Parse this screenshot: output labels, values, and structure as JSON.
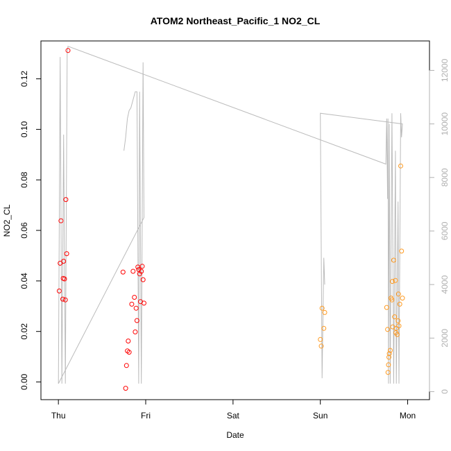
{
  "chart_data": {
    "type": "scatter",
    "title": "ATOM2 Northeast_Pacific_1 NO2_CL",
    "xlabel": "Date",
    "ylabel": "NO2_CL",
    "x_units": "days (Thu = 0)",
    "xlim": [
      -0.2,
      4.25
    ],
    "ylim": [
      -0.007,
      0.135
    ],
    "y2lim": [
      -300,
      13100
    ],
    "x_ticks": [
      {
        "value": 0,
        "label": "Thu"
      },
      {
        "value": 1,
        "label": "Fri"
      },
      {
        "value": 2,
        "label": "Sat"
      },
      {
        "value": 3,
        "label": "Sun"
      },
      {
        "value": 4,
        "label": "Mon"
      }
    ],
    "y_ticks": [
      {
        "value": 0.0,
        "label": "0.00"
      },
      {
        "value": 0.02,
        "label": "0.02"
      },
      {
        "value": 0.04,
        "label": "0.04"
      },
      {
        "value": 0.06,
        "label": "0.06"
      },
      {
        "value": 0.08,
        "label": "0.08"
      },
      {
        "value": 0.1,
        "label": "0.10"
      },
      {
        "value": 0.12,
        "label": "0.12"
      }
    ],
    "y2_ticks": [
      {
        "value": 0,
        "label": "0"
      },
      {
        "value": 2000,
        "label": "2000"
      },
      {
        "value": 4000,
        "label": "4000"
      },
      {
        "value": 6000,
        "label": "6000"
      },
      {
        "value": 8000,
        "label": "8000"
      },
      {
        "value": 10000,
        "label": "10000"
      },
      {
        "value": 12000,
        "label": "12000"
      }
    ],
    "grid": false,
    "legend": "none",
    "series": [
      {
        "color": "#ff0000",
        "points": [
          {
            "x": 0.01,
            "y": 0.036
          },
          {
            "x": 0.02,
            "y": 0.047
          },
          {
            "x": 0.03,
            "y": 0.0638
          },
          {
            "x": 0.05,
            "y": 0.0328
          },
          {
            "x": 0.055,
            "y": 0.041
          },
          {
            "x": 0.06,
            "y": 0.0478
          },
          {
            "x": 0.07,
            "y": 0.0408
          },
          {
            "x": 0.08,
            "y": 0.0325
          },
          {
            "x": 0.085,
            "y": 0.0722
          },
          {
            "x": 0.095,
            "y": 0.0508
          },
          {
            "x": 0.11,
            "y": 0.1312
          },
          {
            "x": 0.74,
            "y": 0.0435
          },
          {
            "x": 0.77,
            "y": -0.0025
          },
          {
            "x": 0.78,
            "y": 0.0065
          },
          {
            "x": 0.79,
            "y": 0.0123
          },
          {
            "x": 0.8,
            "y": 0.0162
          },
          {
            "x": 0.81,
            "y": 0.0118
          },
          {
            "x": 0.84,
            "y": 0.0308
          },
          {
            "x": 0.855,
            "y": 0.0438
          },
          {
            "x": 0.87,
            "y": 0.0335
          },
          {
            "x": 0.88,
            "y": 0.0198
          },
          {
            "x": 0.89,
            "y": 0.0292
          },
          {
            "x": 0.9,
            "y": 0.0243
          },
          {
            "x": 0.91,
            "y": 0.0455
          },
          {
            "x": 0.92,
            "y": 0.0445
          },
          {
            "x": 0.93,
            "y": 0.0428
          },
          {
            "x": 0.94,
            "y": 0.0318
          },
          {
            "x": 0.95,
            "y": 0.0438
          },
          {
            "x": 0.96,
            "y": 0.0458
          },
          {
            "x": 0.97,
            "y": 0.0405
          },
          {
            "x": 0.98,
            "y": 0.0312
          }
        ]
      },
      {
        "color": "#ff9a20",
        "points": [
          {
            "x": 3.0,
            "y": 0.0168
          },
          {
            "x": 3.01,
            "y": 0.0142
          },
          {
            "x": 3.02,
            "y": 0.0292
          },
          {
            "x": 3.04,
            "y": 0.0212
          },
          {
            "x": 3.05,
            "y": 0.0275
          },
          {
            "x": 3.76,
            "y": 0.0295
          },
          {
            "x": 3.77,
            "y": 0.0208
          },
          {
            "x": 3.775,
            "y": 0.0038
          },
          {
            "x": 3.78,
            "y": 0.0068
          },
          {
            "x": 3.785,
            "y": 0.0098
          },
          {
            "x": 3.79,
            "y": 0.0112
          },
          {
            "x": 3.8,
            "y": 0.0125
          },
          {
            "x": 3.81,
            "y": 0.0332
          },
          {
            "x": 3.82,
            "y": 0.0325
          },
          {
            "x": 3.825,
            "y": 0.0398
          },
          {
            "x": 3.83,
            "y": 0.0218
          },
          {
            "x": 3.84,
            "y": 0.0482
          },
          {
            "x": 3.85,
            "y": 0.0258
          },
          {
            "x": 3.86,
            "y": 0.0402
          },
          {
            "x": 3.865,
            "y": 0.0195
          },
          {
            "x": 3.87,
            "y": 0.0212
          },
          {
            "x": 3.88,
            "y": 0.0188
          },
          {
            "x": 3.89,
            "y": 0.0242
          },
          {
            "x": 3.895,
            "y": 0.0348
          },
          {
            "x": 3.9,
            "y": 0.0222
          },
          {
            "x": 3.91,
            "y": 0.0308
          },
          {
            "x": 3.92,
            "y": 0.0855
          },
          {
            "x": 3.93,
            "y": 0.0518
          },
          {
            "x": 3.94,
            "y": 0.0332
          }
        ]
      }
    ],
    "secondary_line": {
      "color": "#bbbbbb",
      "axis": "right",
      "points": [
        {
          "x": 0.0,
          "y": 300
        },
        {
          "x": 0.02,
          "y": 12500
        },
        {
          "x": 0.04,
          "y": 300
        },
        {
          "x": 0.06,
          "y": 9600
        },
        {
          "x": 0.08,
          "y": 300
        },
        {
          "x": 0.1,
          "y": 12600
        },
        {
          "x": 0.11,
          "y": 12900
        },
        {
          "x": 3.75,
          "y": 8500
        },
        {
          "x": 3.76,
          "y": 10200
        },
        {
          "x": 3.77,
          "y": 7200
        },
        {
          "x": 3.775,
          "y": 10200
        },
        {
          "x": 3.78,
          "y": 300
        },
        {
          "x": 3.79,
          "y": 10000
        },
        {
          "x": 3.8,
          "y": 300
        },
        {
          "x": 3.82,
          "y": 10400
        },
        {
          "x": 3.84,
          "y": 300
        },
        {
          "x": 3.86,
          "y": 9000
        },
        {
          "x": 3.87,
          "y": 300
        },
        {
          "x": 3.89,
          "y": 7100
        },
        {
          "x": 3.9,
          "y": 300
        },
        {
          "x": 3.92,
          "y": 10400
        },
        {
          "x": 3.93,
          "y": 9500
        },
        {
          "x": 3.94,
          "y": 10000
        },
        {
          "x": 3.0,
          "y": 10400
        },
        {
          "x": 3.02,
          "y": 500
        },
        {
          "x": 3.04,
          "y": 5000
        },
        {
          "x": 3.05,
          "y": 4000
        }
      ],
      "segments": [
        [
          {
            "x": 0.0,
            "y": 300
          },
          {
            "x": 0.98,
            "y": 6500
          },
          {
            "x": 0.97,
            "y": 12300
          },
          {
            "x": 0.95,
            "y": 300
          },
          {
            "x": 0.93,
            "y": 11200
          },
          {
            "x": 0.92,
            "y": 300
          },
          {
            "x": 0.9,
            "y": 11200
          },
          {
            "x": 0.88,
            "y": 11200
          },
          {
            "x": 0.83,
            "y": 10600
          },
          {
            "x": 0.81,
            "y": 10500
          },
          {
            "x": 0.79,
            "y": 10200
          },
          {
            "x": 0.77,
            "y": 9500
          },
          {
            "x": 0.75,
            "y": 9000
          }
        ]
      ]
    }
  }
}
